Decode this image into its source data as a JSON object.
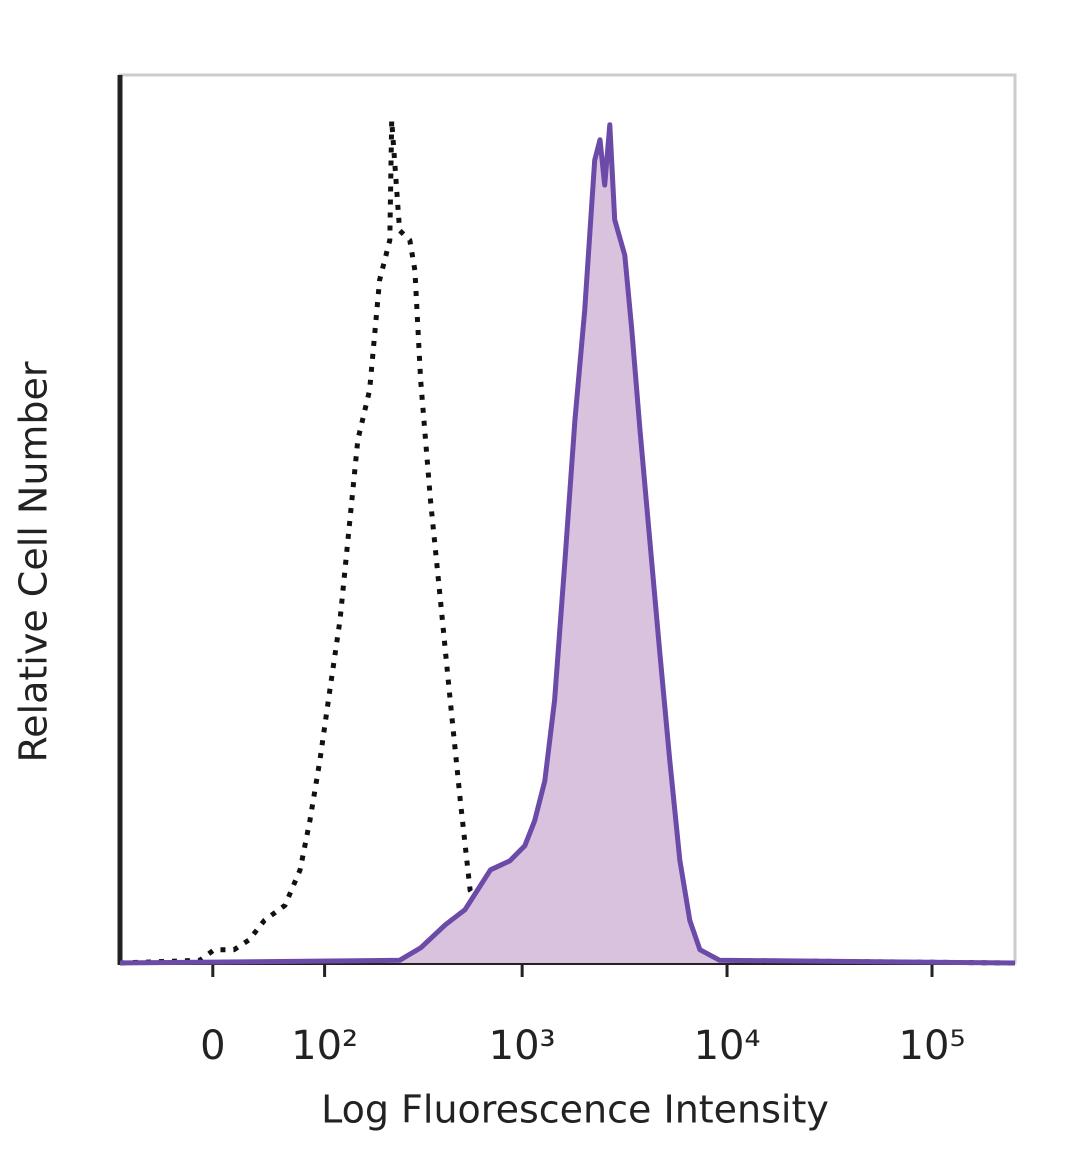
{
  "chart_data": {
    "type": "line",
    "x_label": "Log Fluorescence Intensity",
    "y_label": "Relative Cell Number",
    "xscale": "arcsinh",
    "xscale_width": 62,
    "xlim": [
      -77,
      254000
    ],
    "ylim": [
      0,
      100
    ],
    "xticks": [
      0,
      {
        "value": 100,
        "label": "10²"
      },
      {
        "value": 1000,
        "label": "10³"
      },
      {
        "value": 10000,
        "label": "10⁴"
      },
      {
        "value": 100000,
        "label": "10⁵"
      }
    ],
    "series": [
      {
        "color": "#111111",
        "dashed": true,
        "x": [
          -77,
          -9,
          1,
          15,
          26,
          38,
          56,
          71,
          82,
          94,
          107,
          122,
          138,
          152,
          175,
          197,
          222,
          227,
          249,
          280,
          297,
          317,
          355,
          397,
          444,
          497,
          556,
          700,
          870,
          1220,
          2400,
          7370,
          254000
        ],
        "values": [
          0,
          0.3,
          1.5,
          1.5,
          2.6,
          4.8,
          6.5,
          10.5,
          16.1,
          22.9,
          30.7,
          38.6,
          49.9,
          58.9,
          64.5,
          76.9,
          81.4,
          94.9,
          82.5,
          81.4,
          78,
          65.7,
          52.1,
          40.9,
          29.6,
          18.4,
          8.2,
          4.8,
          2,
          2.6,
          0.9,
          0.3,
          0
        ]
      },
      {
        "color": "#6b4aa8",
        "fill": "#d8c2dd",
        "x": [
          -77,
          249,
          317,
          420,
          525,
          700,
          870,
          1030,
          1150,
          1290,
          1440,
          1620,
          1810,
          2020,
          2260,
          2400,
          2530,
          2680,
          2830,
          3170,
          3430,
          3760,
          4200,
          4690,
          5250,
          5880,
          6580,
          7370,
          9210,
          254000
        ],
        "values": [
          0,
          0.3,
          1.7,
          4.3,
          6,
          10.5,
          11.5,
          13.2,
          16,
          20.5,
          29.6,
          45.4,
          61.1,
          73.5,
          90.4,
          92.7,
          87.6,
          94.4,
          83.7,
          79.7,
          71.3,
          60,
          47.6,
          35.2,
          22.9,
          11.6,
          4.8,
          1.5,
          0.3,
          0
        ]
      }
    ]
  }
}
